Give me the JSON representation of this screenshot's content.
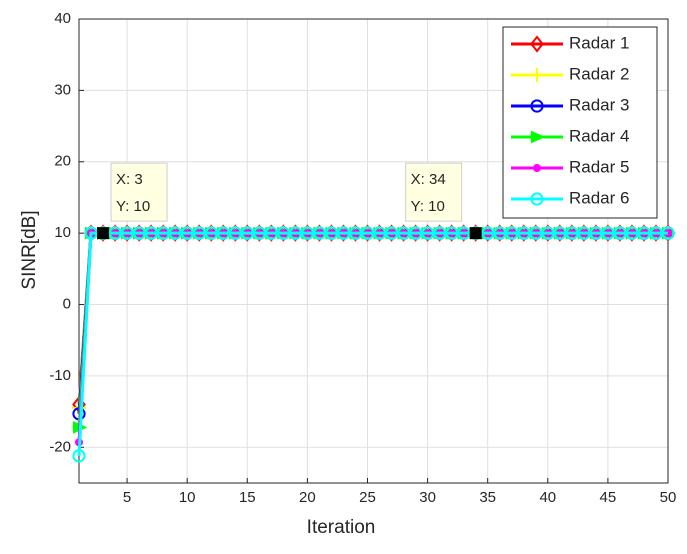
{
  "chart_data": {
    "type": "line",
    "x_label": "Iteration",
    "y_label": "SINR[dB]",
    "x": [
      1,
      2,
      3,
      4,
      5,
      6,
      7,
      8,
      9,
      10,
      11,
      12,
      13,
      14,
      15,
      16,
      17,
      18,
      19,
      20,
      21,
      22,
      23,
      24,
      25,
      26,
      27,
      28,
      29,
      30,
      31,
      32,
      33,
      34,
      35,
      36,
      37,
      38,
      39,
      40,
      41,
      42,
      43,
      44,
      45,
      46,
      47,
      48,
      49,
      50
    ],
    "series": [
      {
        "name": "Radar 1",
        "color": "#ff0000",
        "marker": "diamond",
        "values": [
          -14,
          10,
          10,
          10,
          10,
          10,
          10,
          10,
          10,
          10,
          10,
          10,
          10,
          10,
          10,
          10,
          10,
          10,
          10,
          10,
          10,
          10,
          10,
          10,
          10,
          10,
          10,
          10,
          10,
          10,
          10,
          10,
          10,
          10,
          10,
          10,
          10,
          10,
          10,
          10,
          10,
          10,
          10,
          10,
          10,
          10,
          10,
          10,
          10,
          10
        ]
      },
      {
        "name": "Radar 2",
        "color": "#ffff00",
        "marker": "plus",
        "values": [
          -14.5,
          10,
          10,
          10,
          10,
          10,
          10,
          10,
          10,
          10,
          10,
          10,
          10,
          10,
          10,
          10,
          10,
          10,
          10,
          10,
          10,
          10,
          10,
          10,
          10,
          10,
          10,
          10,
          10,
          10,
          10,
          10,
          10,
          10,
          10,
          10,
          10,
          10,
          10,
          10,
          10,
          10,
          10,
          10,
          10,
          10,
          10,
          10,
          10,
          10
        ]
      },
      {
        "name": "Radar 3",
        "color": "#0000ff",
        "marker": "circle",
        "values": [
          -15.3,
          10,
          10,
          10,
          10,
          10,
          10,
          10,
          10,
          10,
          10,
          10,
          10,
          10,
          10,
          10,
          10,
          10,
          10,
          10,
          10,
          10,
          10,
          10,
          10,
          10,
          10,
          10,
          10,
          10,
          10,
          10,
          10,
          10,
          10,
          10,
          10,
          10,
          10,
          10,
          10,
          10,
          10,
          10,
          10,
          10,
          10,
          10,
          10,
          10
        ]
      },
      {
        "name": "Radar 4",
        "color": "#00ff00",
        "marker": "triangle-right",
        "values": [
          -17.2,
          10,
          10,
          10,
          10,
          10,
          10,
          10,
          10,
          10,
          10,
          10,
          10,
          10,
          10,
          10,
          10,
          10,
          10,
          10,
          10,
          10,
          10,
          10,
          10,
          10,
          10,
          10,
          10,
          10,
          10,
          10,
          10,
          10,
          10,
          10,
          10,
          10,
          10,
          10,
          10,
          10,
          10,
          10,
          10,
          10,
          10,
          10,
          10,
          10
        ]
      },
      {
        "name": "Radar 5",
        "color": "#ff00ff",
        "marker": "dot",
        "values": [
          -19.3,
          10,
          10,
          10,
          10,
          10,
          10,
          10,
          10,
          10,
          10,
          10,
          10,
          10,
          10,
          10,
          10,
          10,
          10,
          10,
          10,
          10,
          10,
          10,
          10,
          10,
          10,
          10,
          10,
          10,
          10,
          10,
          10,
          10,
          10,
          10,
          10,
          10,
          10,
          10,
          10,
          10,
          10,
          10,
          10,
          10,
          10,
          10,
          10,
          10
        ]
      },
      {
        "name": "Radar 6",
        "color": "#00ffff",
        "marker": "circle",
        "values": [
          -21.2,
          10,
          10,
          10,
          10,
          10,
          10,
          10,
          10,
          10,
          10,
          10,
          10,
          10,
          10,
          10,
          10,
          10,
          10,
          10,
          10,
          10,
          10,
          10,
          10,
          10,
          10,
          10,
          10,
          10,
          10,
          10,
          10,
          10,
          10,
          10,
          10,
          10,
          10,
          10,
          10,
          10,
          10,
          10,
          10,
          10,
          10,
          10,
          10,
          10
        ]
      }
    ],
    "data_tips": [
      {
        "x": 3,
        "y": 10,
        "x_label": "X: 3",
        "y_label": "Y: 10"
      },
      {
        "x": 34,
        "y": 10,
        "x_label": "X: 34",
        "y_label": "Y: 10"
      }
    ],
    "xlim": [
      1,
      50
    ],
    "xticks": [
      5,
      10,
      15,
      20,
      25,
      30,
      35,
      40,
      45,
      50
    ],
    "ylim": [
      -25,
      40
    ],
    "yticks": [
      -20,
      -10,
      0,
      10,
      20,
      30,
      40
    ],
    "grid": true,
    "legend": "top-right"
  }
}
